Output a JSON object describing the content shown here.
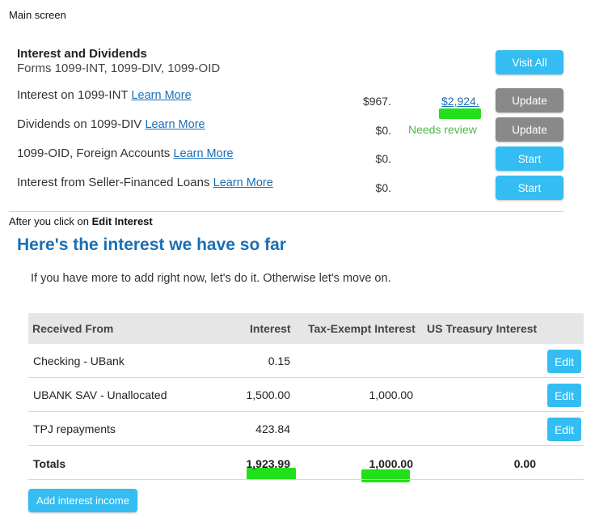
{
  "captions": {
    "main_screen": "Main screen",
    "after_prefix": "After you click on ",
    "after_bold": "Edit Interest"
  },
  "dividends_section": {
    "title": "Interest and Dividends",
    "subtitle": "Forms 1099-INT, 1099-DIV, 1099-OID",
    "visit_all": "Visit All",
    "rows": [
      {
        "label": "Interest on 1099-INT",
        "link": "Learn More",
        "amount": "$967.",
        "extra": "$2,924.",
        "button": "Update"
      },
      {
        "label": "Dividends on 1099-DIV",
        "link": "Learn More",
        "amount": "$0.",
        "extra": "Needs review",
        "button": "Update"
      },
      {
        "label": "1099-OID, Foreign Accounts",
        "link": "Learn More",
        "amount": "$0.",
        "button": "Start"
      },
      {
        "label": "Interest from Seller-Financed Loans",
        "link": "Learn More",
        "amount": "$0.",
        "button": "Start"
      }
    ]
  },
  "interest_page": {
    "heading": "Here's the interest we have so far",
    "subtext": "If you have more to add right now, let's do it. Otherwise let's move on.",
    "columns": [
      "Received From",
      "Interest",
      "Tax-Exempt Interest",
      "US Treasury Interest"
    ],
    "rows": [
      {
        "from": "Checking - UBank",
        "interest": "0.15",
        "tax_exempt": "",
        "treasury": "",
        "action": "Edit"
      },
      {
        "from": "UBANK SAV - Unallocated",
        "interest": "1,500.00",
        "tax_exempt": "1,000.00",
        "treasury": "",
        "action": "Edit"
      },
      {
        "from": "TPJ repayments",
        "interest": "423.84",
        "tax_exempt": "",
        "treasury": "",
        "action": "Edit"
      }
    ],
    "totals": {
      "label": "Totals",
      "interest": "1,923.99",
      "tax_exempt": "1,000.00",
      "treasury": "0.00"
    },
    "add_button": "Add interest income"
  },
  "colors": {
    "button_blue": "#33bdf2",
    "button_gray": "#898989",
    "heading_blue": "#1a6fb5",
    "highlight_green": "#22e01a",
    "needs_review_green": "#4cb84a"
  }
}
